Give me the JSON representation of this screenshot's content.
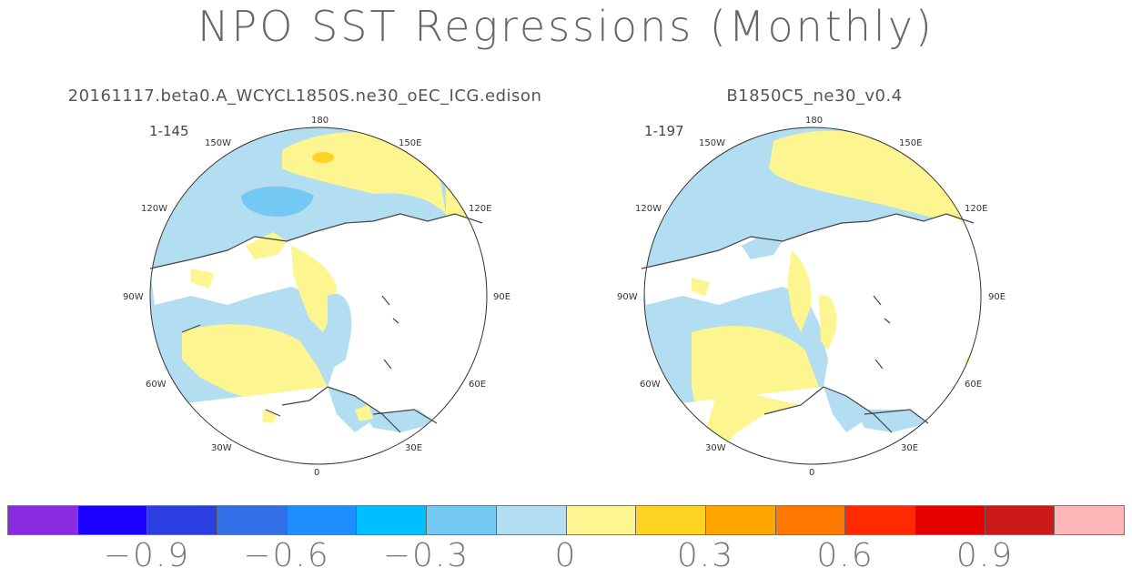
{
  "title": "NPO SST Regressions (Monthly)",
  "panels": [
    {
      "title": "20161117.beta0.A_WCYCL1850S.ne30_oEC_ICG.edison",
      "range": "1-145",
      "lon_labels": [
        "180",
        "150E",
        "120E",
        "90E",
        "60E",
        "30E",
        "0",
        "30W",
        "60W",
        "90W",
        "120W",
        "150W"
      ]
    },
    {
      "title": "B1850C5_ne30_v0.4",
      "range": "1-197",
      "lon_labels": [
        "180",
        "150E",
        "120E",
        "90E",
        "60E",
        "30E",
        "0",
        "30W",
        "60W",
        "90W",
        "120W",
        "150W"
      ]
    }
  ],
  "colorbar": {
    "colors": [
      "#8a2be2",
      "#1a00ff",
      "#2b3fe0",
      "#3370e8",
      "#1f8fff",
      "#00bfff",
      "#74c8f4",
      "#b3def2",
      "#fdf58f",
      "#ffd324",
      "#ffa500",
      "#ff7800",
      "#ff2a00",
      "#e60000",
      "#cc1a1a",
      "#ffb6b6"
    ],
    "labels": [
      "−0.9",
      "−0.6",
      "−0.3",
      "0",
      "0.3",
      "0.6",
      "0.9"
    ],
    "label_positions": [
      -0.9,
      -0.6,
      -0.3,
      0,
      0.3,
      0.6,
      0.9
    ]
  }
}
